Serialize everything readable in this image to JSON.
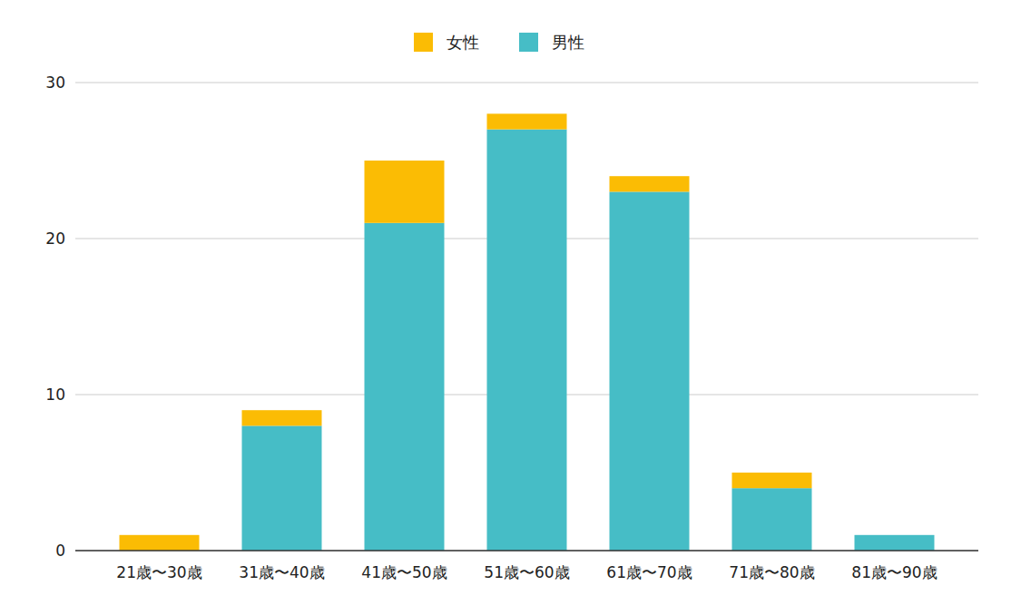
{
  "chart_data": {
    "type": "bar",
    "stacked": true,
    "grid": true,
    "legend": "top",
    "categories": [
      "21歳〜30歳",
      "31歳〜40歳",
      "41歳〜50歳",
      "51歳〜60歳",
      "61歳〜70歳",
      "71歳〜80歳",
      "81歳〜90歳"
    ],
    "series": [
      {
        "name": "男性",
        "color": "#46bdc6",
        "values": [
          0,
          8,
          21,
          27,
          23,
          4,
          1
        ]
      },
      {
        "name": "女性",
        "color": "#fbbc04",
        "values": [
          1,
          1,
          4,
          1,
          1,
          1,
          0
        ]
      }
    ],
    "ylim": [
      0,
      30
    ],
    "yticks": [
      0,
      10,
      20,
      30
    ]
  }
}
